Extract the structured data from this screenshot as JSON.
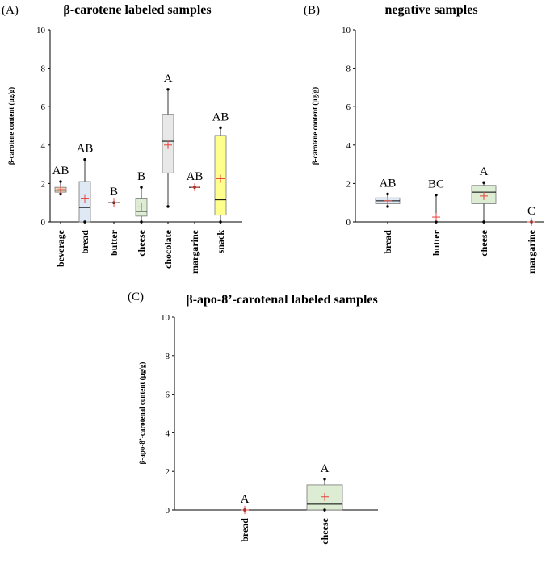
{
  "chart_data": [
    {
      "id": "A",
      "type": "boxplot",
      "panel_label": "(A)",
      "title": "β-carotene labeled samples",
      "ylabel": "β-carotene content (µg/g)",
      "ylim": [
        0,
        10
      ],
      "yticks": [
        0,
        2,
        4,
        6,
        8,
        10
      ],
      "categories": [
        {
          "name": "beverage",
          "min": 1.45,
          "q1": 1.55,
          "median": 1.65,
          "q3": 1.8,
          "max": 2.1,
          "mean": 1.68,
          "letter": "AB",
          "color": "#ecd7b8"
        },
        {
          "name": "bread",
          "min": 0.0,
          "q1": 0.0,
          "median": 0.75,
          "q3": 2.1,
          "max": 3.25,
          "mean": 1.2,
          "letter": "AB",
          "color": "#dfe9f5"
        },
        {
          "name": "butter",
          "min": 1.0,
          "q1": 1.0,
          "median": 1.0,
          "q3": 1.0,
          "max": 1.0,
          "mean": 1.0,
          "letter": "B",
          "color": "#ffffff"
        },
        {
          "name": "cheese",
          "min": 0.0,
          "q1": 0.3,
          "median": 0.55,
          "q3": 1.2,
          "max": 1.8,
          "mean": 0.78,
          "letter": "B",
          "color": "#ddedd4"
        },
        {
          "name": "chocolate",
          "min": 0.8,
          "q1": 2.55,
          "median": 4.2,
          "q3": 5.6,
          "max": 6.9,
          "mean": 4.0,
          "letter": "A",
          "color": "#e8e8e8"
        },
        {
          "name": "margarine",
          "min": 1.8,
          "q1": 1.8,
          "median": 1.8,
          "q3": 1.8,
          "max": 1.8,
          "mean": 1.8,
          "letter": "AB",
          "color": "#ffffff"
        },
        {
          "name": "snack",
          "min": 0.0,
          "q1": 0.35,
          "median": 1.15,
          "q3": 4.5,
          "max": 4.9,
          "mean": 2.25,
          "letter": "AB",
          "color": "#ffff8c"
        }
      ]
    },
    {
      "id": "B",
      "type": "boxplot",
      "panel_label": "(B)",
      "title": "negative samples",
      "ylabel": "β-carotene content (µg/g)",
      "ylim": [
        0,
        10
      ],
      "yticks": [
        0,
        2,
        4,
        6,
        8,
        10
      ],
      "categories": [
        {
          "name": "bread",
          "min": 0.8,
          "q1": 0.95,
          "median": 1.1,
          "q3": 1.25,
          "max": 1.45,
          "mean": 1.1,
          "letter": "AB",
          "color": "#dfe9f5"
        },
        {
          "name": "butter",
          "min": 0.0,
          "q1": 0.0,
          "median": 0.0,
          "q3": 0.0,
          "max": 1.4,
          "mean": 0.25,
          "letter": "BC",
          "color": "#ffffff"
        },
        {
          "name": "cheese",
          "min": 0.0,
          "q1": 0.95,
          "median": 1.55,
          "q3": 1.9,
          "max": 2.05,
          "mean": 1.35,
          "letter": "A",
          "color": "#ddedd4"
        },
        {
          "name": "margarine",
          "min": 0.0,
          "q1": 0.0,
          "median": 0.0,
          "q3": 0.0,
          "max": 0.0,
          "mean": 0.0,
          "letter": "C",
          "color": "#ffffff"
        }
      ]
    },
    {
      "id": "C",
      "type": "boxplot",
      "panel_label": "(C)",
      "title": "β-apo-8’-carotenal labeled samples",
      "ylabel": "β-apo-8’-carotenal content (µg/g)",
      "ylim": [
        0,
        10
      ],
      "yticks": [
        0,
        2,
        4,
        6,
        8,
        10
      ],
      "categories": [
        {
          "name": "bread",
          "min": 0.0,
          "q1": 0.0,
          "median": 0.0,
          "q3": 0.0,
          "max": 0.0,
          "mean": 0.0,
          "letter": "A",
          "color": "#ffffff"
        },
        {
          "name": "cheese",
          "min": 0.0,
          "q1": 0.0,
          "median": 0.3,
          "q3": 1.3,
          "max": 1.6,
          "mean": 0.68,
          "letter": "A",
          "color": "#ddedd4"
        }
      ]
    }
  ]
}
